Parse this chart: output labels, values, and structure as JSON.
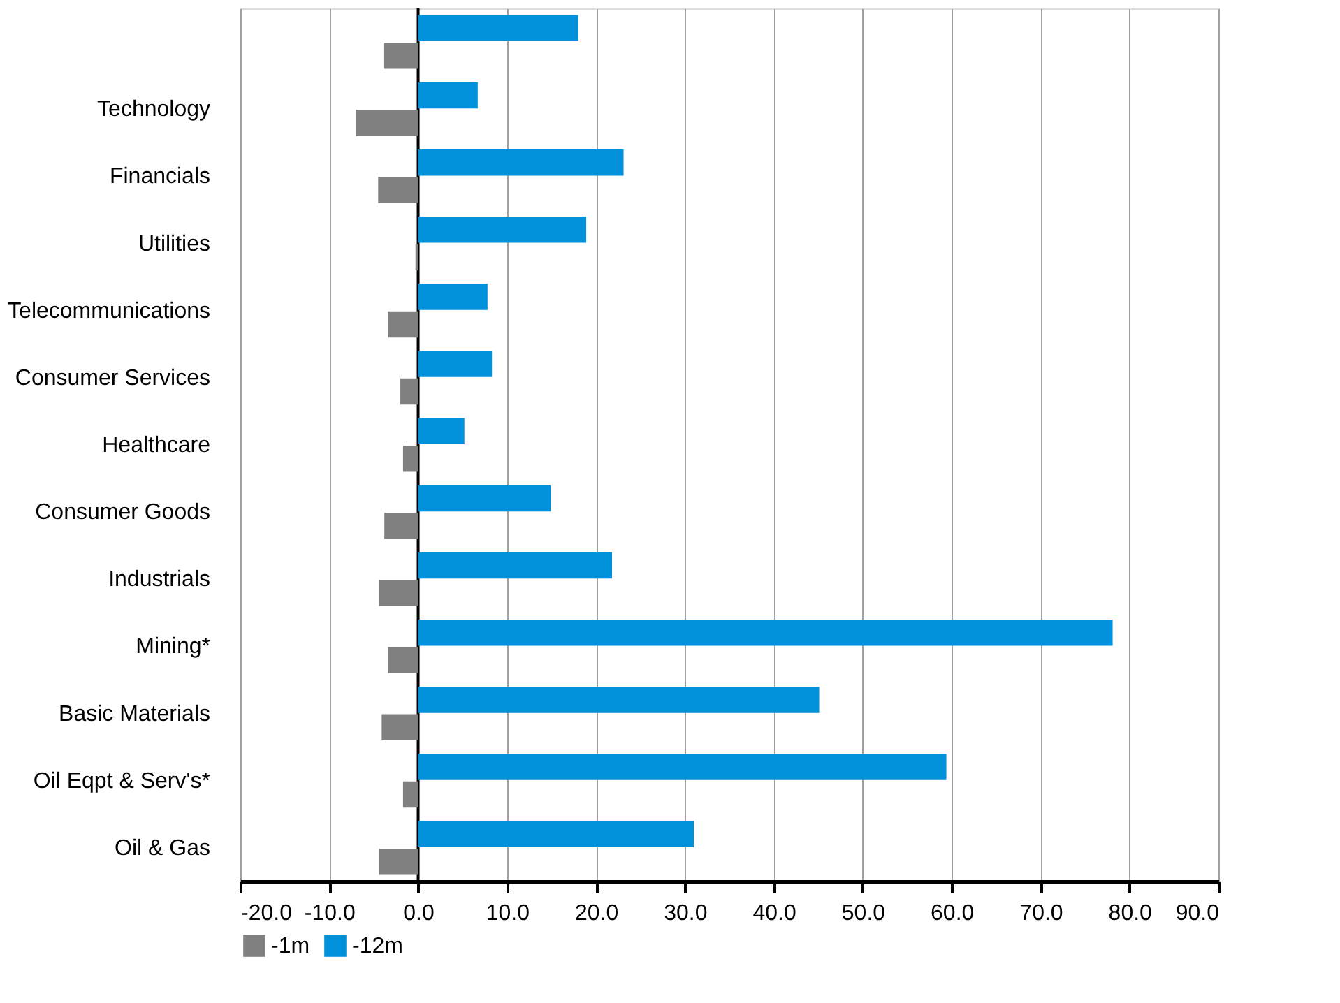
{
  "chart_data": {
    "type": "bar",
    "orientation": "horizontal",
    "categories": [
      null,
      "Technology",
      "Financials",
      "Utilities",
      "Telecommunications",
      "Consumer Services",
      "Healthcare",
      "Consumer Goods",
      "Industrials",
      "Mining*",
      "Basic Materials",
      "Oil Eqpt & Serv's*",
      "Oil & Gas"
    ],
    "series": [
      {
        "name": "-1m",
        "color": "#808080",
        "values": [
          -3.9,
          -7.0,
          -4.5,
          -0.3,
          -3.4,
          -2.0,
          -1.7,
          -3.8,
          -4.4,
          -3.4,
          -4.1,
          -1.7,
          -4.4
        ]
      },
      {
        "name": "-12m",
        "color": "#0091da",
        "values": [
          18.0,
          6.7,
          23.1,
          18.9,
          7.8,
          8.3,
          5.2,
          14.9,
          21.8,
          78.1,
          45.1,
          59.4,
          31.0
        ]
      }
    ],
    "xlim": [
      -20,
      90
    ],
    "xticks": [
      {
        "value": -20,
        "label": "-20.0"
      },
      {
        "value": -10,
        "label": "-10.0"
      },
      {
        "value": 0,
        "label": "0.0"
      },
      {
        "value": 10,
        "label": "10.0"
      },
      {
        "value": 20,
        "label": "20.0"
      },
      {
        "value": 30,
        "label": "30.0"
      },
      {
        "value": 40,
        "label": "40.0"
      },
      {
        "value": 50,
        "label": "50.0"
      },
      {
        "value": 60,
        "label": "60.0"
      },
      {
        "value": 70,
        "label": "70.0"
      },
      {
        "value": 80,
        "label": "80.0"
      },
      {
        "value": 90,
        "label": "90.0"
      }
    ],
    "grid": "x",
    "legend": "bottom"
  }
}
